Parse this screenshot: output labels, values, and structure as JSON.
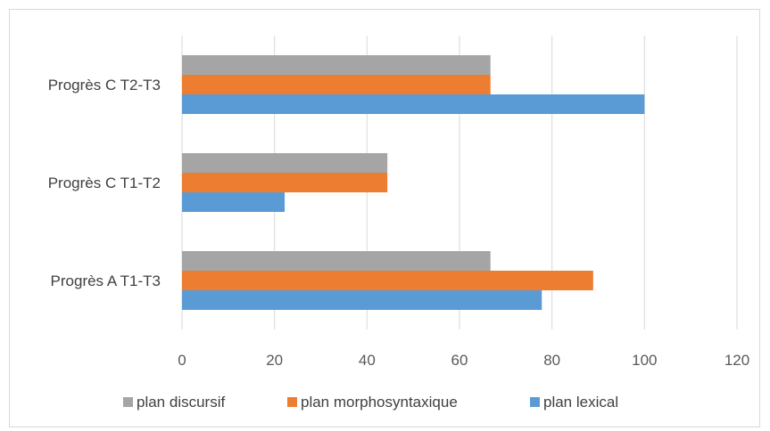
{
  "chart_data": {
    "type": "bar",
    "orientation": "horizontal",
    "categories": [
      "Progrès A T1-T3",
      "Progrès C T1-T2",
      "Progrès C T2-T3"
    ],
    "series": [
      {
        "name": "plan lexical",
        "color": "#5B9BD5",
        "values": [
          77.8,
          22.2,
          100
        ]
      },
      {
        "name": "plan morphosyntaxique",
        "color": "#ED7D31",
        "values": [
          88.9,
          44.4,
          66.7
        ]
      },
      {
        "name": "plan discursif",
        "color": "#A5A5A5",
        "values": [
          66.7,
          44.4,
          66.7
        ]
      }
    ],
    "xlim": [
      0,
      120
    ],
    "xticks": [
      0,
      20,
      40,
      60,
      80,
      100,
      120
    ],
    "grid": "vertical",
    "legend_position": "bottom",
    "legend_order": [
      "plan discursif",
      "plan morphosyntaxique",
      "plan lexical"
    ]
  }
}
